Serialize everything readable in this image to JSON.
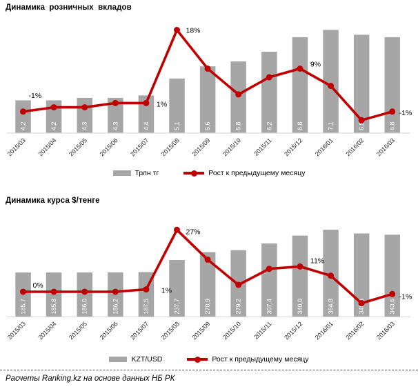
{
  "colors": {
    "bar": "#a6a6a6",
    "line": "#c00000",
    "marker": "#c00000",
    "bar_label": "#ffffff",
    "axis_line": "#d9d9d9",
    "tick_text": "#262626",
    "point_label_text": "#000000"
  },
  "footer": {
    "text": "Расчеты Ranking.kz на основе данных НБ РК"
  },
  "chart_data": [
    {
      "type": "bar+line",
      "title": "Динамика розничных вкладов",
      "categories": [
        "2015/03",
        "2015/04",
        "2015/05",
        "2015/06",
        "2015/07",
        "2015/08",
        "2015/09",
        "2015/10",
        "2015/11",
        "2015/12",
        "2016/01",
        "2016/02",
        "2016/03"
      ],
      "series": [
        {
          "name": "Трлн тг",
          "type": "bar",
          "values": [
            4.2,
            4.2,
            4.3,
            4.3,
            4.4,
            5.1,
            5.6,
            5.8,
            6.2,
            6.8,
            7.1,
            6.9,
            6.8
          ],
          "labels": [
            "4,2",
            "4,2",
            "4,3",
            "4,3",
            "4,4",
            "5,1",
            "5,6",
            "5,8",
            "6,2",
            "6,8",
            "7,1",
            "6,9",
            "6,8"
          ]
        },
        {
          "name": "Рост к предыдущему месяцу",
          "type": "line",
          "values": [
            -1,
            0,
            0,
            1,
            1,
            18,
            9,
            3,
            7,
            9,
            5,
            -3,
            -1
          ],
          "point_labels": [
            {
              "index": 0,
              "text": "-1%",
              "dx": 8,
              "dy": -20
            },
            {
              "index": 4,
              "text": "1%",
              "dx": 15,
              "dy": 5
            },
            {
              "index": 5,
              "text": "18%",
              "dx": 13,
              "dy": 4
            },
            {
              "index": 9,
              "text": "9%",
              "dx": 15,
              "dy": -3
            },
            {
              "index": 12,
              "text": "-1%",
              "dx": 10,
              "dy": 5
            }
          ]
        }
      ],
      "ylim_bar": [
        2.85,
        7.45
      ],
      "ylim_line": [
        -6,
        20
      ],
      "grid": false,
      "legend_position": "bottom-center"
    },
    {
      "type": "bar+line",
      "title": "Динамика курса $/тенге",
      "categories": [
        "2015/03",
        "2015/04",
        "2015/05",
        "2015/06",
        "2015/07",
        "2015/08",
        "2015/09",
        "2015/10",
        "2015/11",
        "2015/12",
        "2016/01",
        "2016/02",
        "2016/03"
      ],
      "series": [
        {
          "name": "KZT/USD",
          "type": "bar",
          "values": [
            185.7,
            185.8,
            186.0,
            186.2,
            187.5,
            237.7,
            270.9,
            279.2,
            307.4,
            340.0,
            364.8,
            348.8,
            343.6
          ],
          "labels": [
            "185,7",
            "185,8",
            "186,0",
            "186,2",
            "187,5",
            "237,7",
            "270,9",
            "279,2",
            "307,4",
            "340,0",
            "364,8",
            "348,8",
            "343,6"
          ]
        },
        {
          "name": "Рост к предыдущему месяцу",
          "type": "line",
          "values": [
            0,
            0,
            0,
            0,
            1,
            27,
            14,
            3,
            10,
            11,
            7,
            -5,
            -1
          ],
          "point_labels": [
            {
              "index": 0,
              "text": "0%",
              "dx": 14,
              "dy": -6
            },
            {
              "index": 4,
              "text": "1%",
              "dx": 22,
              "dy": 5
            },
            {
              "index": 5,
              "text": "27%",
              "dx": 13,
              "dy": 6
            },
            {
              "index": 9,
              "text": "11%",
              "dx": 15,
              "dy": -5
            },
            {
              "index": 12,
              "text": "-1%",
              "dx": 10,
              "dy": 7
            }
          ]
        }
      ],
      "ylim_bar": [
        0,
        431
      ],
      "ylim_line": [
        -11,
        34
      ],
      "grid": false,
      "legend_position": "bottom-center"
    }
  ]
}
